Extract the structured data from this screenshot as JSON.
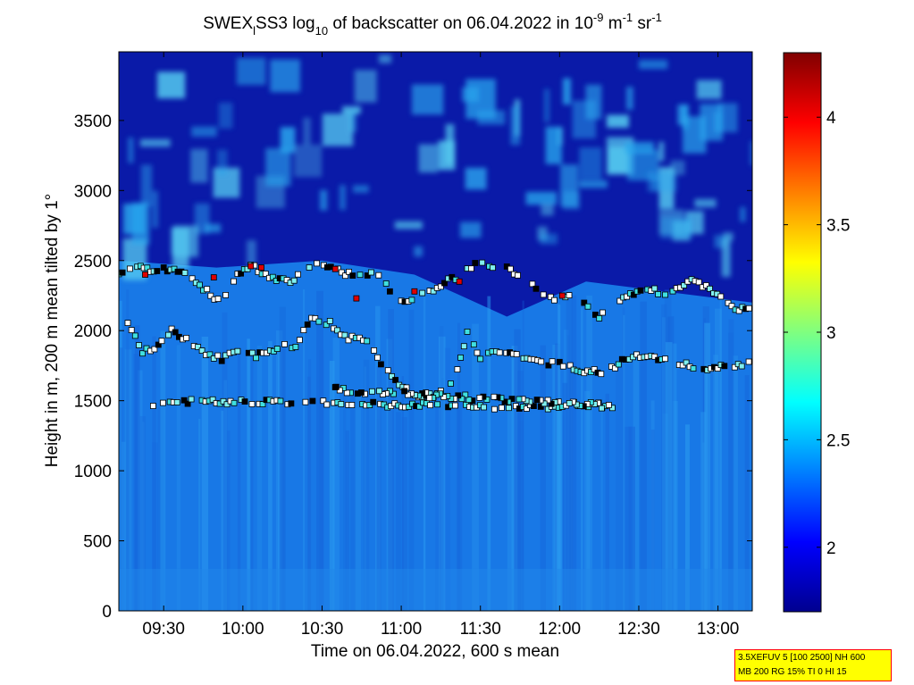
{
  "chart_data": {
    "type": "heatmap",
    "title": {
      "prefix": "SWEX",
      "prefix_sub": "l",
      "mid": "SS3 log",
      "mid_sub": "10",
      "mid2": " of backscatter on 06.04.2022 in 10",
      "exp1": "-9",
      "unit1": " m",
      "exp2": "-1",
      "unit2": " sr",
      "exp3": "-1"
    },
    "xlabel": "Time on 06.04.2022, 600 s mean",
    "ylabel": "Height in m, 200 m mean tilted by 1°",
    "x_tick_labels": [
      "09:30",
      "10:00",
      "10:30",
      "11:00",
      "11:30",
      "12:00",
      "12:30",
      "13:00"
    ],
    "x_tick_values_min": [
      570,
      600,
      630,
      660,
      690,
      720,
      750,
      780
    ],
    "xlim_min": [
      553,
      793
    ],
    "y_ticks": [
      0,
      500,
      1000,
      1500,
      2000,
      2500,
      3000,
      3500
    ],
    "y_tick_labels": [
      "0",
      "500",
      "1000",
      "1500",
      "2000",
      "2500",
      "3000",
      "3500"
    ],
    "ylim": [
      0,
      3990
    ],
    "colorbar": {
      "colormap": "jet",
      "clim": [
        1.7,
        4.3
      ],
      "ticks": [
        2,
        2.5,
        3,
        3.5,
        4
      ],
      "tick_labels": [
        "2",
        "2.5",
        "3",
        "3.5",
        "4"
      ]
    },
    "bands": [
      {
        "min": 553,
        "height_m": 2500,
        "value": 2.5
      },
      {
        "min": 590,
        "height_m": 2450,
        "value": 2.5
      },
      {
        "min": 630,
        "height_m": 2500,
        "value": 2.5
      },
      {
        "min": 665,
        "height_m": 2400,
        "value": 2.5
      },
      {
        "min": 700,
        "height_m": 2100,
        "value": 2.5
      },
      {
        "min": 730,
        "height_m": 2350,
        "value": 2.5
      },
      {
        "min": 793,
        "height_m": 2200,
        "value": 2.5
      }
    ],
    "layers": [
      {
        "name": "upper",
        "points": [
          [
            553,
            2400
          ],
          [
            560,
            2470
          ],
          [
            565,
            2420
          ],
          [
            570,
            2440
          ],
          [
            578,
            2410
          ],
          [
            585,
            2300
          ],
          [
            592,
            2200
          ],
          [
            598,
            2400
          ],
          [
            603,
            2470
          ],
          [
            610,
            2380
          ],
          [
            618,
            2350
          ],
          [
            628,
            2480
          ],
          [
            636,
            2430
          ],
          [
            643,
            2380
          ],
          [
            650,
            2420
          ],
          [
            660,
            2200
          ],
          [
            668,
            2250
          ],
          [
            675,
            2330
          ],
          [
            682,
            2390
          ],
          [
            688,
            2470
          ],
          [
            700,
            2450
          ],
          [
            718,
            2220
          ],
          [
            725,
            2250
          ],
          [
            735,
            2100
          ],
          [
            752,
            2320
          ],
          [
            760,
            2250
          ],
          [
            770,
            2380
          ],
          [
            788,
            2150
          ],
          [
            793,
            2170
          ]
        ]
      },
      {
        "name": "lower",
        "points": [
          [
            555,
            2100
          ],
          [
            562,
            1850
          ],
          [
            568,
            1880
          ],
          [
            573,
            2000
          ],
          [
            580,
            1920
          ],
          [
            586,
            1830
          ],
          [
            592,
            1800
          ],
          [
            598,
            1850
          ],
          [
            605,
            1820
          ],
          [
            613,
            1880
          ],
          [
            620,
            1900
          ],
          [
            626,
            2080
          ],
          [
            633,
            2050
          ],
          [
            640,
            1950
          ],
          [
            647,
            1930
          ],
          [
            655,
            1700
          ],
          [
            662,
            1580
          ],
          [
            668,
            1520
          ],
          [
            675,
            1560
          ],
          [
            680,
            1650
          ],
          [
            685,
            1980
          ],
          [
            690,
            1800
          ],
          [
            696,
            1850
          ],
          [
            705,
            1820
          ],
          [
            713,
            1770
          ],
          [
            720,
            1760
          ],
          [
            728,
            1720
          ],
          [
            737,
            1700
          ],
          [
            745,
            1800
          ],
          [
            752,
            1820
          ],
          [
            760,
            1800
          ],
          [
            768,
            1760
          ],
          [
            776,
            1720
          ],
          [
            785,
            1750
          ],
          [
            793,
            1780
          ]
        ]
      },
      {
        "name": "low-patches",
        "points": [
          [
            566,
            1450
          ],
          [
            571,
            1500
          ],
          [
            721,
            1450
          ],
          [
            727,
            1480
          ],
          [
            740,
            1460
          ],
          [
            634,
            1580
          ],
          [
            636,
            1620
          ]
        ]
      }
    ],
    "red_markers": [
      [
        563,
        2400
      ],
      [
        589,
        2380
      ],
      [
        603,
        2460
      ],
      [
        607,
        2450
      ],
      [
        635,
        2440
      ],
      [
        643,
        2230
      ],
      [
        665,
        2280
      ],
      [
        682,
        2350
      ],
      [
        721,
        2250
      ]
    ]
  },
  "info_box": {
    "line1": "3.5XEFUV 5 [100 2500] NH 600",
    "line2": "MB 200 RG 15% TI 0 HI 15"
  }
}
